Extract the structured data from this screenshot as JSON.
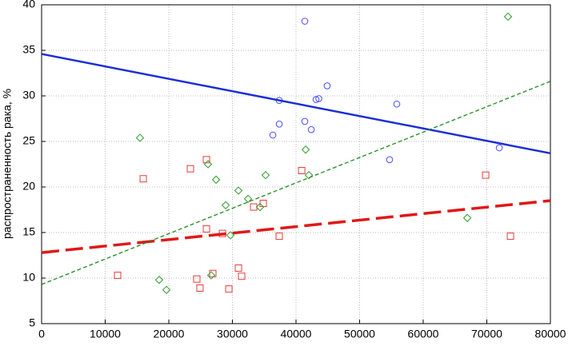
{
  "chart_data": {
    "type": "scatter",
    "y_label": "распространенность рака, %",
    "xlim": [
      0,
      80000
    ],
    "ylim": [
      5,
      40
    ],
    "xticks": [
      0,
      10000,
      20000,
      30000,
      40000,
      50000,
      60000,
      70000,
      80000
    ],
    "yticks": [
      5,
      10,
      15,
      20,
      25,
      30,
      35,
      40
    ],
    "grid": true,
    "series": [
      {
        "marker": "circle",
        "color": "#4b4bff",
        "trend_color": "#1a2ed6",
        "trend_style": "solid",
        "x": [
          41390,
          44900,
          37360,
          43150,
          43590,
          55850,
          37360,
          41390,
          42400,
          36360,
          54720,
          71960
        ],
        "values": [
          38.2,
          31.1,
          29.5,
          29.6,
          29.7,
          29.1,
          26.9,
          27.2,
          26.3,
          25.7,
          23.0,
          24.3
        ],
        "trend_x": [
          0,
          80000
        ],
        "trend": [
          34.6,
          23.7
        ]
      },
      {
        "marker": "square",
        "color": "#e83a3a",
        "trend_color": "#e01818",
        "trend_style": "long-dash",
        "x": [
          15980,
          23400,
          25920,
          40890,
          69820,
          25920,
          28430,
          33340,
          34850,
          37360,
          73720,
          11950,
          24400,
          24900,
          26920,
          30950,
          31450,
          29440
        ],
        "values": [
          20.9,
          22.0,
          23.0,
          21.8,
          21.3,
          15.4,
          14.9,
          17.8,
          18.2,
          14.6,
          14.6,
          10.3,
          9.9,
          8.9,
          10.5,
          11.1,
          10.2,
          8.8
        ],
        "trend_x": [
          0,
          80000
        ],
        "trend": [
          12.8,
          18.5
        ]
      },
      {
        "marker": "diamond",
        "color": "#2a9a2a",
        "trend_color": "#1e8a1e",
        "trend_style": "short-dash",
        "x": [
          15470,
          26170,
          27430,
          30950,
          32460,
          28940,
          35220,
          41520,
          42020,
          34350,
          29690,
          26670,
          18490,
          19630,
          66930,
          73340
        ],
        "values": [
          25.4,
          22.5,
          20.8,
          19.6,
          18.7,
          18.0,
          21.3,
          24.1,
          21.3,
          17.8,
          14.7,
          10.3,
          9.8,
          8.7,
          16.6,
          38.7
        ],
        "trend_x": [
          0,
          80000
        ],
        "trend": [
          9.3,
          31.6
        ]
      }
    ]
  }
}
